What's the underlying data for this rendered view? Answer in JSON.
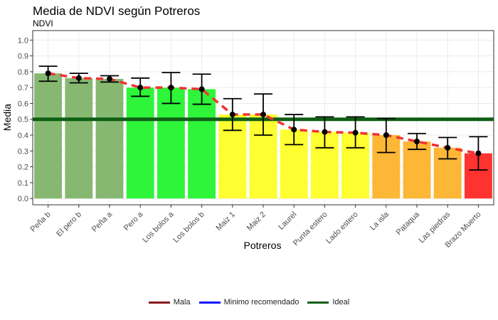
{
  "chart_data": {
    "type": "bar",
    "title": "Media de NDVI según Potreros",
    "subtitle": "NDVI",
    "xlabel": "Potreros",
    "ylabel": "Media",
    "ylim": [
      -0.04,
      1.06
    ],
    "yticks": [
      "0.0",
      "0.1",
      "0.2",
      "0.3",
      "0.4",
      "0.5",
      "0.6",
      "0.7",
      "0.8",
      "0.9",
      "1.0"
    ],
    "categories": [
      "Peña b",
      "El pero b",
      "Peña a",
      "Pero a",
      "Los bolos a",
      "Los bolos b",
      "Maiz 1",
      "Maiz 2",
      "Laurel",
      "Punta estero",
      "Lado estero",
      "La isla",
      "Pataqua",
      "Las piedras",
      "Brazo Muerto"
    ],
    "values": [
      0.79,
      0.76,
      0.755,
      0.7,
      0.7,
      0.69,
      0.53,
      0.53,
      0.435,
      0.42,
      0.415,
      0.4,
      0.36,
      0.32,
      0.285
    ],
    "error_low": [
      0.74,
      0.73,
      0.735,
      0.645,
      0.6,
      0.595,
      0.43,
      0.4,
      0.34,
      0.32,
      0.32,
      0.29,
      0.31,
      0.25,
      0.18
    ],
    "error_high": [
      0.835,
      0.79,
      0.775,
      0.76,
      0.795,
      0.785,
      0.63,
      0.66,
      0.53,
      0.515,
      0.515,
      0.505,
      0.41,
      0.385,
      0.39
    ],
    "bar_colors": [
      "#87b872",
      "#87b872",
      "#87b872",
      "#2ef53a",
      "#2ef53a",
      "#2ef53a",
      "#fefe30",
      "#fefe30",
      "#fefe30",
      "#fefe30",
      "#fefe30",
      "#fdb736",
      "#fdb736",
      "#fdb736",
      "#fe3330"
    ],
    "trend_color": "#f03333",
    "reference_lines": [
      {
        "name": "Ideal",
        "value": 0.5,
        "color": "#0e5f14"
      }
    ],
    "legend": [
      {
        "name": "Mala",
        "color": "#8b1a1a"
      },
      {
        "name": "Minimo recomendado",
        "color": "#1414ff"
      },
      {
        "name": "Ideal",
        "color": "#0e5f14"
      }
    ],
    "legend_position": "bottom",
    "grid": true
  }
}
